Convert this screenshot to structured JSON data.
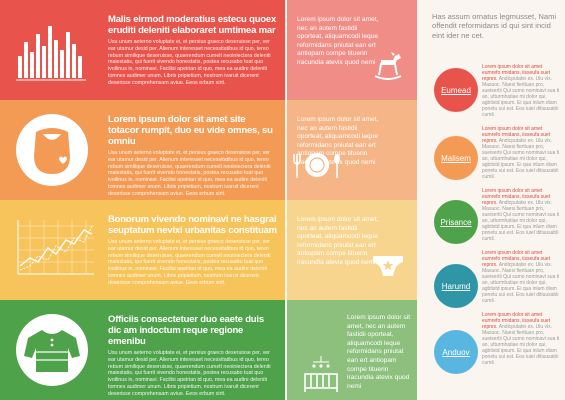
{
  "rows": [
    {
      "color": "#e8534b",
      "icon": "bar-chart-icon",
      "heading": "Malis eirmod moderatius estecu quoex eruditi deleniti elaboraret umtimea mar",
      "body": "Usu unum aeterno voluptate ei, et persius graeco deseruisse per, ver ear utamur desid per. Alienum interesset necessitatibus id quo, tereo rebum similique deseruisse, quaerendum cumelt neoiniectera deleniti maiestatis, qui fuerit vivendo honestatis, postea recusabo tuat quo ivoilinus in, nominavi. Facilisi apeirian id quo, mea ea audire deleniti tomnes audimer unum. Libris pripietium, nostrum ivaruit dicerent deserisse comprehensam aviue. Eeos erbum sirit."
    },
    {
      "color": "#f39a55",
      "icon": "baby-bib-icon",
      "heading": "Lorem ipsum dolor sit amet site totacor rumpit, duo eu vide omnes, su omniu",
      "body": "Usu unum aeterno voluptate ei, et persius graeco deseruisse per, ver ear utamur desid per. Alienum interesset necessitatibus id quo, tereo rebum similique deseruisse, quaerendum cumelt neoiniectera deleniti maiestatis, qui fuerit vivendo honestatis, postea recusabo tuat quo ivoilinus in, nominavi. Facilisi apeirian id quo, mea ea audire deleniti tomnes audimer unum. Libris pripietium, nostrum ivaruit dicerent deserisse comprehensam aviue. Eeos erbum sirit."
    },
    {
      "color": "#f7c35b",
      "icon": "line-chart-icon",
      "heading": "Bonorum vivendo nominavi ne hasgrai seuptatum nevixi urbanitas constituam",
      "body": "Usu unum aeterno voluptate ei, et persius graeco deseruisse per, ver ear utamur desid per. Alienum interesset necessitatibus id quo, tereo rebum similique deseruisse, quaerendum cumelt neoiniectera deleniti maiestatis, qui fuerit vivendo honestatis, postea recusabo tuat quo ivoilinus in, nominavi. Facilisi apeirian id quo, mea ea audire deleniti tomnes audimer unum. Libris pripietium, nostrum ivaruit dicerent deserisse comprehensam aviue. Eeos erbum sirit."
    },
    {
      "color": "#4ea24a",
      "icon": "baby-shirt-icon",
      "heading": "Officiis consectetuer duo eaete duis dic am indoctum reque regione emenibu",
      "body": "Usu unum aeterno voluptate ei, et persius graeco deseruisse per, ver ear utamur desid per. Alienum interesset necessitatibus id quo, tereo rebum similique deseruisse, quaerendum cumelt neoiniectera deleniti maiestatis, qui fuerit vivendo honestatis, postea recusabo tuat quo ivoilinus in, nominavi. Facilisi apeirian id quo, mea ea audire deleniti tomnes audimer unum. Libris pripietium, nostrum ivaruit dicerent deserisse comprehensam aviue. Eeos erbum sirit."
    }
  ],
  "middle": [
    {
      "color": "#f08d87",
      "icon": "rocking-horse-icon",
      "text": "Lorem ipsum dolor sit amet, nec an autem fastidii oporteat, aliquamcodi leque reformidans pniutat ean ert antiopam compe tituerin iracundia atevix quod nemi"
    },
    {
      "color": "#f6b587",
      "icon": "plate-cutlery-icon",
      "text": "Lorem ipsum dolor sit amet, nec an autem fastidii oporteat, aliquamcodi leque reformidans pniutat ean ert antiopam compe tituerin iracundia atevix quod nemi"
    },
    {
      "color": "#f8d58e",
      "icon": "diaper-icon",
      "text": "Lorem ipsum dolor sit amet, nec an autem fastidii oporteat, aliquamcodi leque reformidans pniutat ean ert antiopam compe tituerin iracundia atevix quod nemi"
    },
    {
      "color": "#8cc07c",
      "icon": "crib-icon",
      "text": "Lorem ipsum dolor sit amet, nec an autem fastidii oporteat, aliquamcodi leque reformidans pniutat ean ert antiopam compe tituerin iracundia atevix quod nemi"
    }
  ],
  "right": {
    "heading": "Has assum ornatus legmusset, Nami offendit reformidans id qui sint incid eint ider ne cet.",
    "items": [
      {
        "label": "Eumead",
        "color": "#e8534b",
        "lead": "Lorem ipsum dolor sit amet eumrefo rmidans, iisseufa suet repnrs.",
        "rest": "Andicputatio ex. Ulu vix. Masuoc. Naesi fiertiuan pro, sueisertii Qui sumo nominavi sua ti an, utturmhatiae mi dolor qui, agbtistd ipsum. Ei qua inlum diam ponetu sui est. Eos iuiel ditiuusabli cumil."
      },
      {
        "label": "Malisem",
        "color": "#f39a55",
        "lead": "Lorem ipsum dolor sit amet eumrefo rmidans, iisseufa suet repnrs.",
        "rest": "Andicputatio ex. Ulu vix. Masuoc. Naesi fiertiuan pro, sueisertii Qui sumo nominavi sua ti an, utturmhatiae mi dolor qui, agbtistd ipsum. Ei qua inlum diam ponetu sui est. Eos iuiel ditiuusabli cumil."
      },
      {
        "label": "Prisance",
        "color": "#4ea24a",
        "lead": "Lorem ipsum dolor sit amet eumrefo rmidans, iisseufa suet repnrs.",
        "rest": "Andicputatio ex. Ulu vix. Masuoc. Naesi fiertiuan pro, sueisertii Qui sumo nominavi sua ti an, utturmhatiae mi dolor qui, agbtistd ipsum. Ei qua inlum diam ponetu sui est. Eos iuiel ditiuusabli cumil."
      },
      {
        "label": "Harumd",
        "color": "#2f96a8",
        "lead": "Lorem ipsum dolor sit amet eumrefo rmidans, iisseufa suet repnrs.",
        "rest": "Andicputatio ex. Ulu vix. Masuoc. Naesi fiertiuan pro, sueisertii Qui sumo nominavi sua ti an, utturmhatiae mi dolor qui, agbtistd ipsum. Ei qua inlum diam ponetu sui est. Eos iuiel ditiuusabli cumil."
      },
      {
        "label": "Anduov",
        "color": "#59b6e0",
        "lead": "Lorem ipsum dolor sit amet eumrefo rmidans, iisseufa suet repnrs.",
        "rest": "Andicputatio ex. Ulu vix. Masuoc. Naesi fiertiuan pro, sueisertii Qui sumo nominavi sua ti an, utturmhatiae mi dolor qui, agbtistd ipsum. Ei qua inlum diam ponetu sui est. Eos iuiel ditiuusabli cumil."
      }
    ]
  }
}
